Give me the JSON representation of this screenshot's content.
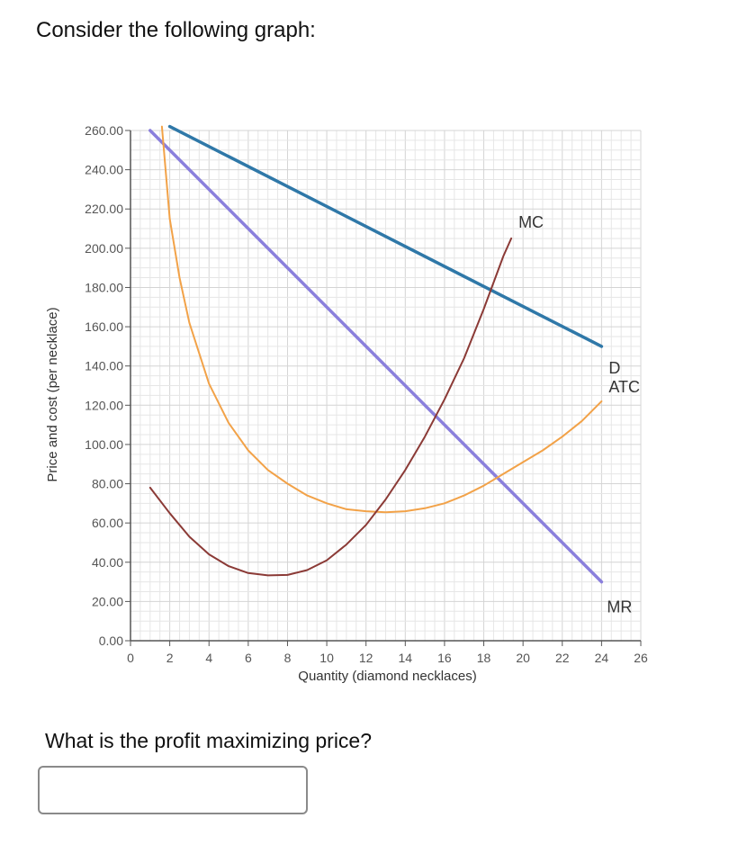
{
  "intro": "Consider the following graph:",
  "question": "What is the profit maximizing price?",
  "answer": {
    "value": "",
    "placeholder": ""
  },
  "chart_data": {
    "type": "line",
    "xlabel": "Quantity (diamond necklaces)",
    "ylabel": "Price and cost (per necklace)",
    "xlim": [
      0,
      26
    ],
    "ylim": [
      0,
      260
    ],
    "grid": true,
    "x_ticks": [
      "0",
      "2",
      "4",
      "6",
      "8",
      "10",
      "12",
      "14",
      "16",
      "18",
      "20",
      "22",
      "24",
      "26"
    ],
    "y_ticks": [
      "0.00",
      "20.00",
      "40.00",
      "60.00",
      "80.00",
      "100.00",
      "120.00",
      "140.00",
      "160.00",
      "180.00",
      "200.00",
      "220.00",
      "240.00",
      "260.00"
    ],
    "series": [
      {
        "name": "D",
        "color": "#2f78a8",
        "points": [
          [
            2,
            262
          ],
          [
            24,
            150
          ]
        ]
      },
      {
        "name": "MR",
        "color": "#8a7fdc",
        "points": [
          [
            1,
            260
          ],
          [
            24,
            30
          ]
        ]
      },
      {
        "name": "ATC",
        "color": "#f2a248",
        "points": [
          [
            1.6,
            262
          ],
          [
            2,
            215
          ],
          [
            2.5,
            185
          ],
          [
            3,
            162
          ],
          [
            4,
            131
          ],
          [
            5,
            111
          ],
          [
            6,
            97
          ],
          [
            7,
            87
          ],
          [
            8,
            80
          ],
          [
            9,
            74
          ],
          [
            10,
            70
          ],
          [
            11,
            67
          ],
          [
            12,
            66
          ],
          [
            13,
            65.5
          ],
          [
            14,
            66
          ],
          [
            15,
            67.5
          ],
          [
            16,
            70
          ],
          [
            17,
            74
          ],
          [
            18,
            79
          ],
          [
            19,
            85
          ],
          [
            20,
            91
          ],
          [
            21,
            97
          ],
          [
            22,
            104
          ],
          [
            23,
            112
          ],
          [
            24,
            122
          ]
        ]
      },
      {
        "name": "MC",
        "color": "#8b3a36",
        "points": [
          [
            1,
            78
          ],
          [
            2,
            65
          ],
          [
            3,
            53
          ],
          [
            4,
            44
          ],
          [
            5,
            38
          ],
          [
            6,
            34.5
          ],
          [
            7,
            33.3
          ],
          [
            8,
            33.5
          ],
          [
            9,
            36
          ],
          [
            10,
            41
          ],
          [
            11,
            49
          ],
          [
            12,
            59
          ],
          [
            13,
            72
          ],
          [
            14,
            87
          ],
          [
            15,
            104
          ],
          [
            16,
            123
          ],
          [
            17,
            144
          ],
          [
            18,
            169
          ],
          [
            19,
            196
          ],
          [
            19.4,
            205
          ]
        ]
      }
    ]
  }
}
